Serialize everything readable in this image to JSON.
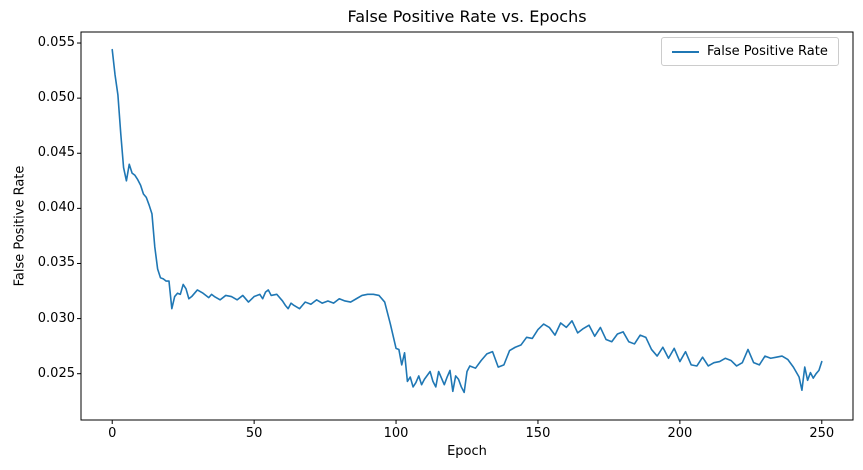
{
  "chart_data": {
    "type": "line",
    "title": "False Positive Rate vs. Epochs",
    "xlabel": "Epoch",
    "ylabel": "False Positive Rate",
    "grid": false,
    "legend": {
      "position": "upper right",
      "entries": [
        "False Positive Rate"
      ]
    },
    "line_color": "#1f77b4",
    "xlim": [
      -11,
      261
    ],
    "ylim": [
      0.0208,
      0.056
    ],
    "xticks": [
      0,
      50,
      100,
      150,
      200,
      250
    ],
    "yticks": [
      0.025,
      0.03,
      0.035,
      0.04,
      0.045,
      0.05,
      0.055
    ],
    "series": [
      {
        "name": "False Positive Rate",
        "color": "#1f77b4",
        "x": [
          0,
          1,
          2,
          3,
          4,
          5,
          6,
          7,
          8,
          9,
          10,
          11,
          12,
          13,
          14,
          15,
          16,
          17,
          18,
          19,
          20,
          21,
          22,
          23,
          24,
          25,
          26,
          27,
          28,
          30,
          32,
          34,
          35,
          36,
          38,
          40,
          42,
          44,
          46,
          48,
          50,
          52,
          53,
          54,
          55,
          56,
          58,
          60,
          61,
          62,
          63,
          64,
          66,
          67,
          68,
          70,
          72,
          74,
          76,
          78,
          80,
          82,
          84,
          86,
          88,
          90,
          92,
          94,
          96,
          98,
          100,
          101,
          102,
          103,
          104,
          105,
          106,
          107,
          108,
          109,
          110,
          112,
          113,
          114,
          115,
          116,
          117,
          118,
          119,
          120,
          121,
          122,
          123,
          124,
          125,
          126,
          128,
          130,
          132,
          134,
          136,
          138,
          140,
          142,
          144,
          146,
          148,
          150,
          152,
          154,
          156,
          158,
          160,
          162,
          164,
          166,
          168,
          170,
          172,
          174,
          176,
          178,
          180,
          182,
          184,
          186,
          188,
          190,
          192,
          194,
          196,
          198,
          200,
          202,
          204,
          206,
          208,
          210,
          212,
          214,
          216,
          218,
          220,
          222,
          224,
          226,
          228,
          230,
          232,
          234,
          236,
          238,
          240,
          242,
          243,
          244,
          245,
          246,
          247,
          248,
          249,
          250
        ],
        "y": [
          0.0544,
          0.0521,
          0.0503,
          0.0468,
          0.0437,
          0.0425,
          0.044,
          0.0432,
          0.043,
          0.0426,
          0.0421,
          0.0413,
          0.041,
          0.0403,
          0.0395,
          0.0365,
          0.0345,
          0.0337,
          0.0336,
          0.0334,
          0.0334,
          0.0309,
          0.032,
          0.0323,
          0.0322,
          0.0331,
          0.0327,
          0.0318,
          0.032,
          0.0326,
          0.0323,
          0.0319,
          0.0322,
          0.032,
          0.0317,
          0.0321,
          0.032,
          0.0317,
          0.0321,
          0.0315,
          0.032,
          0.0322,
          0.0318,
          0.0324,
          0.0326,
          0.0321,
          0.0322,
          0.0316,
          0.0312,
          0.0309,
          0.0314,
          0.0312,
          0.0309,
          0.0312,
          0.0315,
          0.0313,
          0.0317,
          0.0314,
          0.0316,
          0.0314,
          0.0318,
          0.0316,
          0.0315,
          0.0318,
          0.0321,
          0.0322,
          0.0322,
          0.0321,
          0.0315,
          0.0295,
          0.0273,
          0.0272,
          0.0258,
          0.0269,
          0.0243,
          0.0247,
          0.0238,
          0.0242,
          0.0248,
          0.024,
          0.0245,
          0.0252,
          0.0243,
          0.0238,
          0.0252,
          0.0246,
          0.024,
          0.0247,
          0.0253,
          0.0234,
          0.0248,
          0.0245,
          0.0238,
          0.0233,
          0.0252,
          0.0257,
          0.0255,
          0.0262,
          0.0268,
          0.027,
          0.0256,
          0.0258,
          0.0271,
          0.0274,
          0.0276,
          0.0283,
          0.0282,
          0.029,
          0.0295,
          0.0292,
          0.0285,
          0.0296,
          0.0292,
          0.0298,
          0.0287,
          0.0291,
          0.0294,
          0.0284,
          0.0292,
          0.0281,
          0.0279,
          0.0286,
          0.0288,
          0.0279,
          0.0277,
          0.0285,
          0.0283,
          0.0272,
          0.0266,
          0.0274,
          0.0264,
          0.0273,
          0.0261,
          0.027,
          0.0258,
          0.0257,
          0.0265,
          0.0257,
          0.026,
          0.0261,
          0.0264,
          0.0262,
          0.0257,
          0.026,
          0.0272,
          0.026,
          0.0258,
          0.0266,
          0.0264,
          0.0265,
          0.0266,
          0.0263,
          0.0256,
          0.0247,
          0.0235,
          0.0256,
          0.0244,
          0.0251,
          0.0246,
          0.025,
          0.0253,
          0.0261
        ]
      }
    ]
  }
}
